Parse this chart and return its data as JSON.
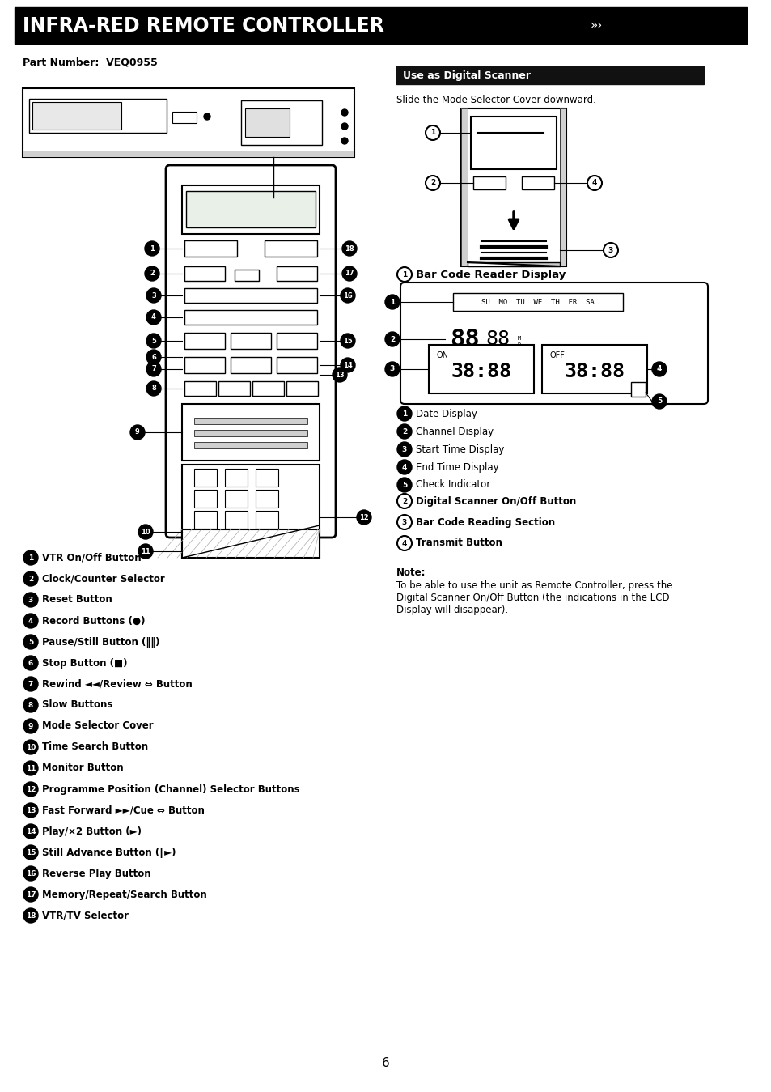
{
  "title": "INFRA-RED REMOTE CONTROLLER",
  "bg_title": "#000000",
  "bg_page": "#ffffff",
  "part_number": "Part Number:  VEQ0955",
  "use_as_digital_scanner": "Use as Digital Scanner",
  "slide_text": "Slide the Mode Selector Cover downward.",
  "bar_code_reader_display": "Bar Code Reader Display",
  "left_labels": [
    {
      "num": "1",
      "text": "VTR On/Off Button"
    },
    {
      "num": "2",
      "text": "Clock/Counter Selector"
    },
    {
      "num": "3",
      "text": "Reset Button"
    },
    {
      "num": "4",
      "text": "Record Buttons (●)"
    },
    {
      "num": "5",
      "text": "Pause/Still Button (‖‖)"
    },
    {
      "num": "6",
      "text": "Stop Button (■)"
    },
    {
      "num": "7",
      "text": "Rewind ◄◄/Review ⇔ Button"
    },
    {
      "num": "8",
      "text": "Slow Buttons"
    },
    {
      "num": "9",
      "text": "Mode Selector Cover"
    },
    {
      "num": "10",
      "text": "Time Search Button"
    },
    {
      "num": "11",
      "text": "Monitor Button"
    },
    {
      "num": "12",
      "text": "Programme Position (Channel) Selector Buttons"
    },
    {
      "num": "13",
      "text": "Fast Forward ►►/Cue ⇔ Button"
    },
    {
      "num": "14",
      "text": "Play/×2 Button (►)"
    },
    {
      "num": "15",
      "text": "Still Advance Button (‖►)"
    },
    {
      "num": "16",
      "text": "Reverse Play Button"
    },
    {
      "num": "17",
      "text": "Memory/Repeat/Search Button"
    },
    {
      "num": "18",
      "text": "VTR/TV Selector"
    }
  ],
  "right_labels_display": [
    {
      "num": "1",
      "text": "Date Display"
    },
    {
      "num": "2",
      "text": "Channel Display"
    },
    {
      "num": "3",
      "text": "Start Time Display"
    },
    {
      "num": "4",
      "text": "End Time Display"
    },
    {
      "num": "5",
      "text": "Check Indicator"
    }
  ],
  "right_labels_bottom": [
    {
      "num": "2",
      "text": "Digital Scanner On/Off Button"
    },
    {
      "num": "3",
      "text": "Bar Code Reading Section"
    },
    {
      "num": "4",
      "text": "Transmit Button"
    }
  ],
  "note_title": "Note:",
  "note_text": "To be able to use the unit as Remote Controller, press the\nDigital Scanner On/Off Button (the indications in the LCD\nDisplay will disappear).",
  "page_number": "6"
}
